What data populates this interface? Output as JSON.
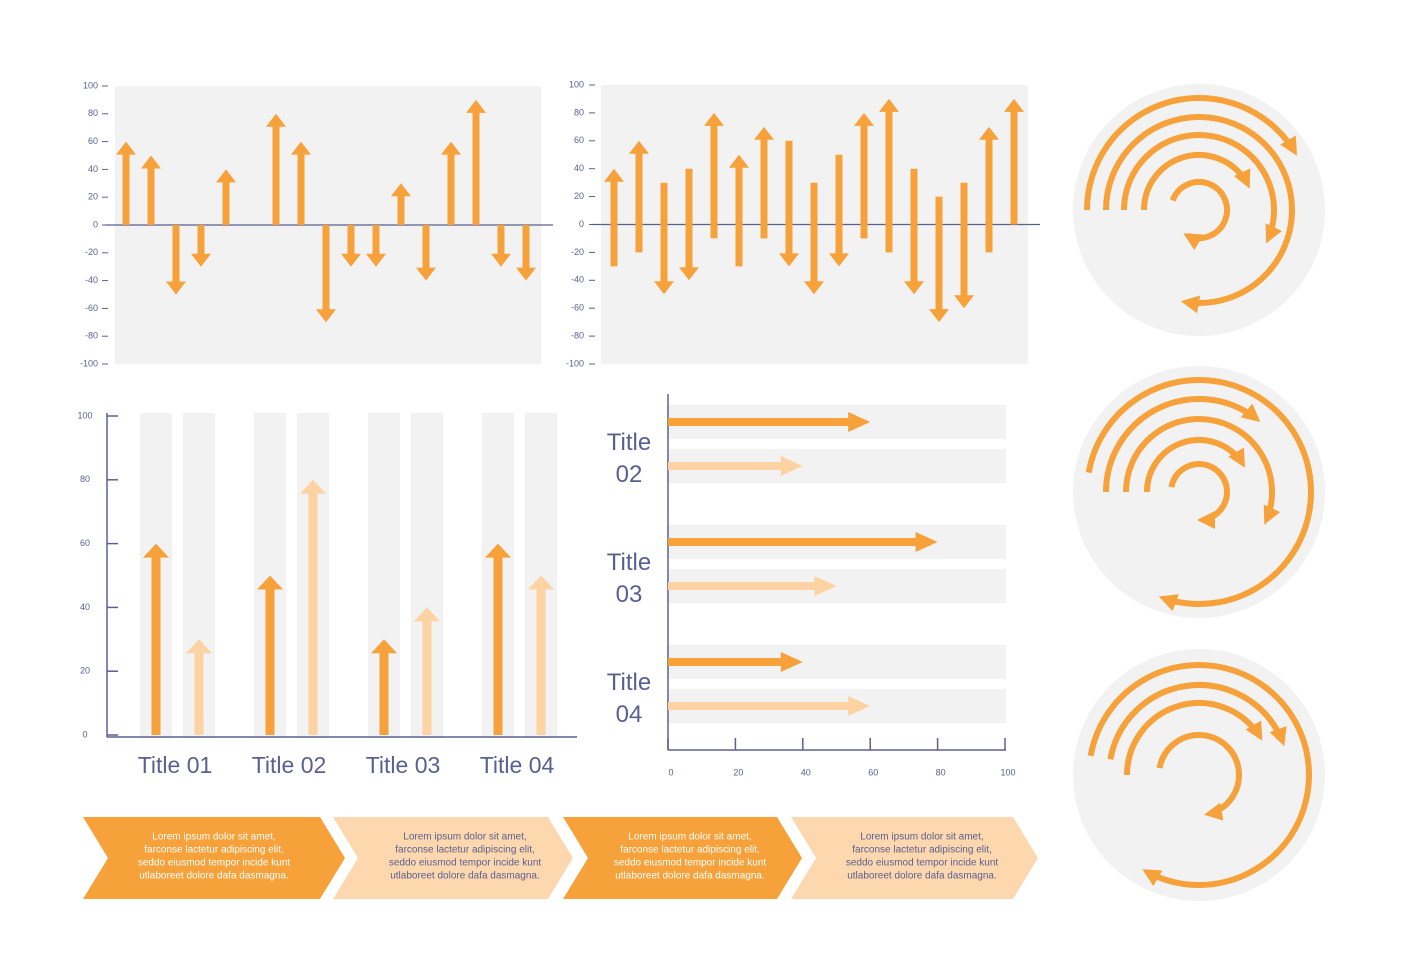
{
  "chart_data": [
    {
      "type": "arrow",
      "color": "#f7a13a",
      "values": [
        60,
        50,
        -50,
        -30,
        40,
        null,
        80,
        60,
        -70,
        -30,
        -30,
        30,
        -40,
        60,
        90,
        -30,
        -40
      ],
      "ylim": [
        -100,
        100
      ],
      "yticks": [
        -100,
        -80,
        -60,
        -40,
        -20,
        0,
        20,
        40,
        60,
        80,
        100
      ]
    },
    {
      "type": "range-arrow",
      "color": "#f7a13a",
      "starts": [
        -30,
        -20,
        30,
        40,
        -10,
        -30,
        -10,
        60,
        30,
        50,
        -10,
        -20,
        40,
        20,
        30,
        -20,
        0
      ],
      "ends": [
        40,
        60,
        -50,
        -40,
        80,
        50,
        70,
        -30,
        -50,
        -30,
        80,
        90,
        -50,
        -70,
        -60,
        70,
        90
      ],
      "ylim": [
        -100,
        100
      ],
      "yticks": [
        -100,
        -80,
        -60,
        -40,
        -20,
        0,
        20,
        40,
        60,
        80,
        100
      ]
    },
    {
      "type": "grouped-arrow",
      "categories": [
        "Title 01",
        "Title 02",
        "Title 03",
        "Title 04"
      ],
      "series": [
        {
          "color": "#f7a13a",
          "values": [
            60,
            50,
            30,
            60
          ]
        },
        {
          "color": "#fdd3a3",
          "values": [
            30,
            80,
            40,
            50
          ]
        }
      ],
      "ylim": [
        0,
        100
      ],
      "yticks": [
        0,
        20,
        40,
        60,
        80,
        100
      ]
    },
    {
      "type": "horizontal-arrow",
      "categories": [
        "Title 02",
        "Title 03",
        "Title 04"
      ],
      "series": [
        {
          "color": "#f7a13a",
          "values": [
            60,
            80,
            40
          ]
        },
        {
          "color": "#fdd3a3",
          "values": [
            40,
            50,
            60
          ]
        }
      ],
      "xlim": [
        0,
        100
      ],
      "xticks": [
        0,
        20,
        40,
        60,
        80,
        100
      ]
    }
  ],
  "chevrons": [
    {
      "lines": [
        "Lorem ipsum dolor sit amet,",
        "farconse lactetur adipiscing elit,",
        "seddo eiusmod tempor incide kunt",
        "utlaboreet dolore dafa dasmagna."
      ]
    },
    {
      "lines": [
        "Lorem ipsum dolor sit amet,",
        "farconse lactetur adipiscing elit,",
        "seddo eiusmod tempor incide kunt",
        "utlaboreet dolore dafa dasmagna."
      ]
    },
    {
      "lines": [
        "Lorem ipsum dolor sit amet,",
        "farconse lactetur adipiscing elit,",
        "seddo eiusmod tempor incide kunt",
        "utlaboreet dolore dafa dasmagna."
      ]
    },
    {
      "lines": [
        "Lorem ipsum dolor sit amet,",
        "farconse lactetur adipiscing elit,",
        "seddo eiusmod tempor incide kunt",
        "utlaboreet dolore dafa dasmagna."
      ]
    }
  ]
}
